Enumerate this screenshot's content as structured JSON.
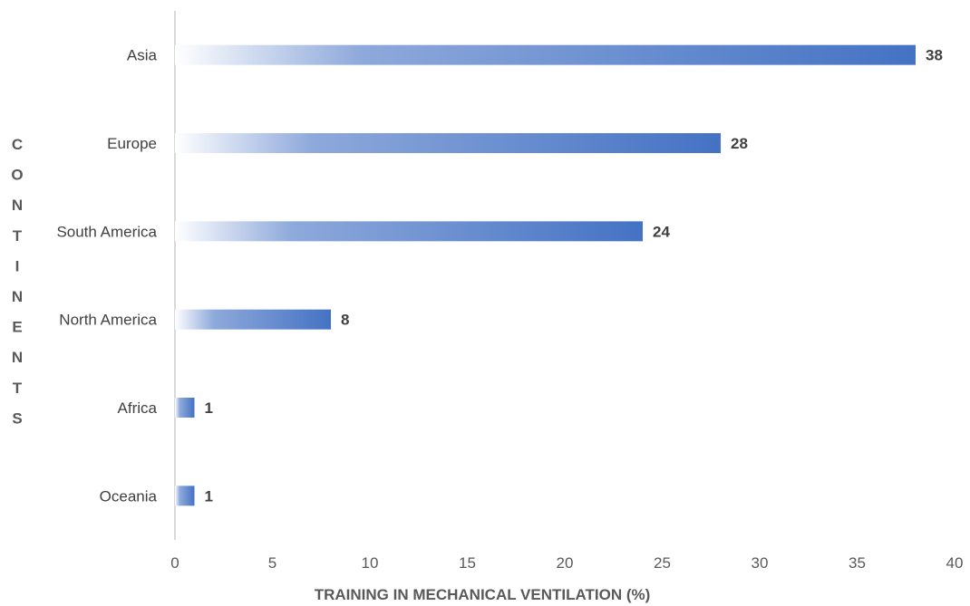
{
  "chart_data": {
    "type": "bar",
    "orientation": "horizontal",
    "categories": [
      "Asia",
      "Europe",
      "South America",
      "North America",
      "Africa",
      "Oceania"
    ],
    "values": [
      38,
      28,
      24,
      8,
      1,
      1
    ],
    "xlabel": "TRAINING IN MECHANICAL VENTILATION (%)",
    "ylabel": "CONTINENTS",
    "xlim": [
      0,
      40
    ],
    "xticks": [
      0,
      5,
      10,
      15,
      20,
      25,
      30,
      35,
      40
    ],
    "grid": false,
    "legend": "none",
    "bar_color": "#4472C4",
    "bar_fade_color": "#FFFFFF"
  }
}
